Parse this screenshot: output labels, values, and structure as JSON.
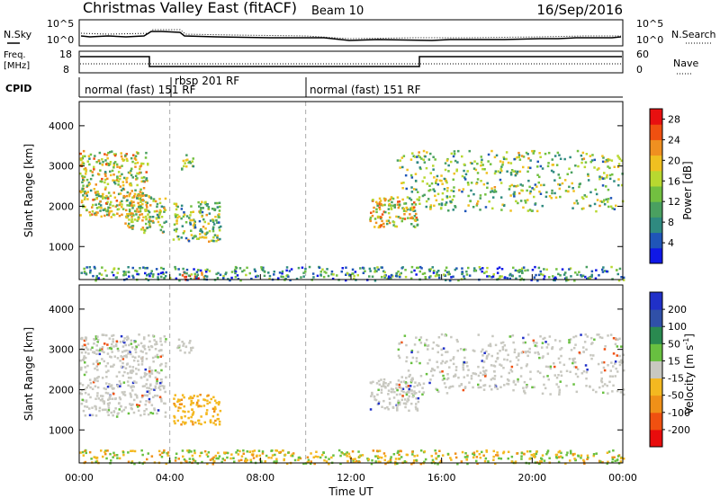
{
  "header": {
    "station": "Christmas Valley East (fitACF)",
    "beam": "Beam 10",
    "date": "16/Sep/2016"
  },
  "noise_panel": {
    "left_label": "N.Sky",
    "right_label": "N.Search",
    "left_ticks": [
      "10^5",
      "10^0"
    ],
    "right_ticks": [
      "10^5",
      "10^0"
    ]
  },
  "freq_panel": {
    "left_label_1": "Freq.",
    "left_label_2": "[MHz]",
    "right_label": "Nave",
    "left_ticks": [
      "18",
      "8"
    ],
    "right_ticks": [
      "60",
      "0"
    ]
  },
  "cpid_panel": {
    "label": "CPID",
    "programs": [
      {
        "name": "normal (fast) 151 RF",
        "start_hour": 0
      },
      {
        "name": "rbsp 201 RF",
        "start_hour": 4
      },
      {
        "name": "normal (fast) 151 RF",
        "start_hour": 10
      }
    ]
  },
  "x_axis": {
    "label": "Time UT",
    "ticks": [
      "00:00",
      "04:00",
      "08:00",
      "12:00",
      "16:00",
      "20:00",
      "00:00"
    ]
  },
  "chart_data": [
    {
      "type": "heatmap",
      "title": "",
      "xlabel": "Time UT",
      "ylabel": "Slant Range [km]",
      "xlim_hours": [
        0,
        24
      ],
      "ylim": [
        180,
        4600
      ],
      "y_ticks": [
        "1000",
        "2000",
        "3000",
        "4000"
      ],
      "colorbar": {
        "label": "Power [dB]",
        "ticks": [
          "4",
          "8",
          "12",
          "16",
          "20",
          "24",
          "28"
        ],
        "range": [
          0,
          30
        ],
        "colors": [
          "#0f18e6",
          "#1f55b8",
          "#2f8a80",
          "#4aa060",
          "#72c040",
          "#b8d830",
          "#f0c020",
          "#f09020",
          "#f05010",
          "#e81010"
        ]
      },
      "regions": [
        {
          "t0": 0.0,
          "t1": 3.0,
          "r0": 1750,
          "r1": 3400,
          "level": 0.55
        },
        {
          "t0": 2.0,
          "t1": 3.8,
          "r0": 1350,
          "r1": 2300,
          "level": 0.5
        },
        {
          "t0": 4.3,
          "t1": 5.0,
          "r0": 2900,
          "r1": 3300,
          "level": 0.55
        },
        {
          "t0": 4.1,
          "t1": 6.2,
          "r0": 1150,
          "r1": 2150,
          "level": 0.45
        },
        {
          "t0": 4.5,
          "t1": 5.5,
          "r0": 200,
          "r1": 420,
          "level": 0.85
        },
        {
          "t0": 0.0,
          "t1": 24.0,
          "r0": 180,
          "r1": 520,
          "level": 0.3
        },
        {
          "t0": 14.0,
          "t1": 24.0,
          "r0": 1900,
          "r1": 3400,
          "level": 0.45
        },
        {
          "t0": 12.8,
          "t1": 15.0,
          "r0": 1500,
          "r1": 2300,
          "level": 0.6
        }
      ]
    },
    {
      "type": "heatmap",
      "title": "",
      "xlabel": "Time UT",
      "ylabel": "Slant Range [km]",
      "xlim_hours": [
        0,
        24
      ],
      "ylim": [
        180,
        4600
      ],
      "y_ticks": [
        "1000",
        "2000",
        "3000",
        "4000"
      ],
      "colorbar": {
        "label": "Velocity [m s",
        "label_sup": "-1",
        "label_end": "]",
        "ticks": [
          "200",
          "100",
          "50",
          "15",
          "-15",
          "-50",
          "-100",
          "-200"
        ],
        "colors": [
          "#2030c8",
          "#3050a8",
          "#2a8a50",
          "#68c040",
          "#c8c8c0",
          "#f4b820",
          "#f09018",
          "#f05010",
          "#e80c0c"
        ]
      },
      "regions": [
        {
          "t0": 0.0,
          "t1": 3.8,
          "r0": 1350,
          "r1": 3400,
          "class": "ground"
        },
        {
          "t0": 4.3,
          "t1": 5.0,
          "r0": 2900,
          "r1": 3300,
          "class": "ground"
        },
        {
          "t0": 4.1,
          "t1": 6.2,
          "r0": 1150,
          "r1": 1900,
          "class": "negative"
        },
        {
          "t0": 0.0,
          "t1": 24.0,
          "r0": 180,
          "r1": 520,
          "class": "mixed"
        },
        {
          "t0": 14.0,
          "t1": 24.0,
          "r0": 1900,
          "r1": 3400,
          "class": "ground"
        },
        {
          "t0": 12.8,
          "t1": 15.0,
          "r0": 1500,
          "r1": 2300,
          "class": "ground"
        }
      ]
    }
  ]
}
